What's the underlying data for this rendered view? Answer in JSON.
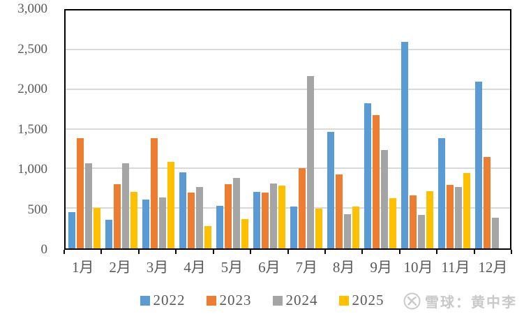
{
  "chart_data": {
    "type": "bar",
    "title": "",
    "categories": [
      "1月",
      "2月",
      "3月",
      "4月",
      "5月",
      "6月",
      "7月",
      "8月",
      "9月",
      "10月",
      "11月",
      "12月"
    ],
    "series": [
      {
        "name": "2022",
        "color": "#5B9BD5",
        "values": [
          460,
          360,
          620,
          960,
          540,
          710,
          530,
          1470,
          1830,
          2600,
          1390,
          2100
        ]
      },
      {
        "name": "2023",
        "color": "#ED7D31",
        "values": [
          1390,
          810,
          1390,
          700,
          810,
          700,
          1010,
          930,
          1680,
          670,
          800,
          1150
        ]
      },
      {
        "name": "2024",
        "color": "#A5A5A5",
        "values": [
          1070,
          1070,
          640,
          770,
          890,
          820,
          2170,
          430,
          1240,
          420,
          770,
          390
        ]
      },
      {
        "name": "2025",
        "color": "#FFC000",
        "values": [
          510,
          710,
          1090,
          280,
          370,
          790,
          500,
          530,
          630,
          720,
          950,
          null
        ]
      }
    ],
    "xlabel": "",
    "ylabel": "",
    "ylim": [
      0,
      3000
    ],
    "ytick_interval": 500,
    "yticks": [
      {
        "value": 0,
        "label": "0"
      },
      {
        "value": 500,
        "label": "500"
      },
      {
        "value": 1000,
        "label": "1,000"
      },
      {
        "value": 1500,
        "label": "1,500"
      },
      {
        "value": 2000,
        "label": "2,000"
      },
      {
        "value": 2500,
        "label": "2,500"
      },
      {
        "value": 3000,
        "label": "3,000"
      }
    ],
    "grid": true,
    "legend_position": "bottom"
  },
  "watermark": {
    "icon": "xueqiu-logo",
    "text": "雪球：黄中李"
  },
  "colors": {
    "axis_text": "#595959",
    "gridline": "#d9d9d9",
    "plot_border": "#000000",
    "background": "#ffffff",
    "watermark": "#c9c9c9"
  }
}
